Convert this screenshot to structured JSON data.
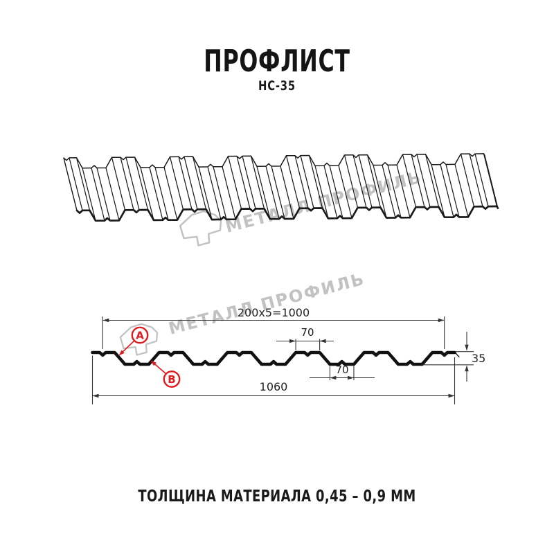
{
  "header": {
    "title": "ПРОФЛИСТ",
    "subtitle": "НС-35"
  },
  "watermark": {
    "text": "МЕТАЛЛ ПРОФИЛЬ",
    "color": "#c2c2c2"
  },
  "cross_section": {
    "dim_top_width": "200x5=1000",
    "dim_crest_width": "70",
    "dim_valley_width": "70",
    "dim_height": "35",
    "dim_total_width": "1060",
    "label_a": "A",
    "label_b": "B",
    "accent_color": "#e0191c",
    "line_color": "#111111",
    "dim_line_color": "#333333"
  },
  "footer": {
    "thickness_note": "ТОЛЩИНА МАТЕРИАЛА 0,45 – 0,9 ММ"
  }
}
